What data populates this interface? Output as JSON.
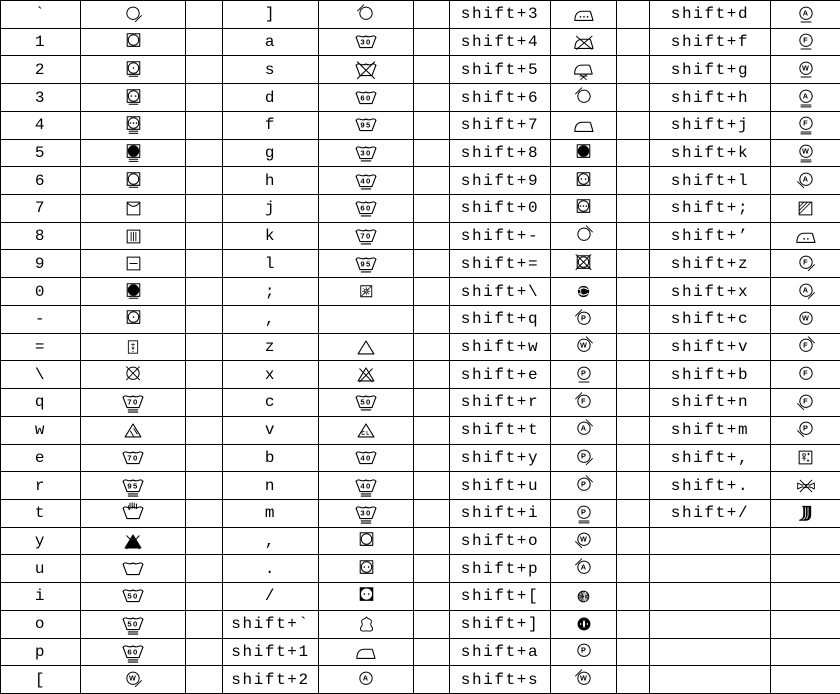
{
  "page": {
    "background_color": "#ffffff",
    "grid_color": "#000000",
    "text_color": "#000000",
    "row_count": 25,
    "description": "Key-to-laundry-care-symbol mapping table"
  },
  "table": {
    "pairs": [
      {
        "cells": [
          {
            "key": "`",
            "sym": {
              "type": "circle-slash",
              "slash": "lr"
            }
          },
          {
            "key": "1",
            "sym": {
              "type": "tumble"
            }
          },
          {
            "key": "2",
            "sym": {
              "type": "tumble",
              "dots": 1,
              "lines": 1
            }
          },
          {
            "key": "3",
            "sym": {
              "type": "tumble",
              "dots": 2,
              "lines": 1
            }
          },
          {
            "key": "4",
            "sym": {
              "type": "tumble",
              "dots": 3,
              "lines": 2
            }
          },
          {
            "key": "5",
            "sym": {
              "type": "tumble",
              "filled": true,
              "lines": 2
            }
          },
          {
            "key": "6",
            "sym": {
              "type": "tumble",
              "lines": 1
            }
          },
          {
            "key": "7",
            "sym": {
              "type": "hang-dry"
            }
          },
          {
            "key": "8",
            "sym": {
              "type": "drip-dry"
            }
          },
          {
            "key": "9",
            "sym": {
              "type": "dry-flat"
            }
          },
          {
            "key": "0",
            "sym": {
              "type": "tumble",
              "filled": true,
              "lines": 1
            }
          },
          {
            "key": "-",
            "sym": {
              "type": "tumble",
              "dots": 1
            }
          },
          {
            "key": "=",
            "sym": {
              "type": "dry-shade-mini"
            }
          },
          {
            "key": "\\",
            "sym": {
              "type": "circle-x"
            }
          },
          {
            "key": "q",
            "sym": {
              "type": "wash",
              "temp": "70",
              "lines": 2
            }
          },
          {
            "key": "w",
            "sym": {
              "type": "bleach-hatch"
            }
          },
          {
            "key": "e",
            "sym": {
              "type": "wash",
              "temp": "70"
            }
          },
          {
            "key": "r",
            "sym": {
              "type": "wash",
              "temp": "95",
              "lines": 2
            }
          },
          {
            "key": "t",
            "sym": {
              "type": "hand-wash"
            }
          },
          {
            "key": "y",
            "sym": {
              "type": "bleach-x-filled"
            }
          },
          {
            "key": "u",
            "sym": {
              "type": "wash"
            }
          },
          {
            "key": "i",
            "sym": {
              "type": "wash",
              "temp": "50"
            }
          },
          {
            "key": "o",
            "sym": {
              "type": "wash",
              "temp": "50",
              "lines": 2
            }
          },
          {
            "key": "p",
            "sym": {
              "type": "wash",
              "temp": "60",
              "lines": 2
            }
          },
          {
            "key": "[",
            "sym": {
              "type": "circle-letter",
              "letter": "W",
              "slash": "lr"
            }
          }
        ]
      },
      {
        "cells": [
          {
            "key": "]",
            "sym": {
              "type": "circle-slash",
              "slash": "ul"
            }
          },
          {
            "key": "a",
            "sym": {
              "type": "wash",
              "temp": "30"
            }
          },
          {
            "key": "s",
            "sym": {
              "type": "wash-x"
            }
          },
          {
            "key": "d",
            "sym": {
              "type": "wash",
              "temp": "60"
            }
          },
          {
            "key": "f",
            "sym": {
              "type": "wash",
              "temp": "95"
            }
          },
          {
            "key": "g",
            "sym": {
              "type": "wash",
              "temp": "30",
              "lines": 1
            }
          },
          {
            "key": "h",
            "sym": {
              "type": "wash",
              "temp": "40",
              "lines": 1
            }
          },
          {
            "key": "j",
            "sym": {
              "type": "wash",
              "temp": "60",
              "lines": 1
            }
          },
          {
            "key": "k",
            "sym": {
              "type": "wash",
              "temp": "70",
              "lines": 1
            }
          },
          {
            "key": "l",
            "sym": {
              "type": "wash",
              "temp": "95",
              "lines": 1
            }
          },
          {
            "key": ";",
            "sym": {
              "type": "dry-shade-sun"
            }
          },
          {
            "key": ",",
            "sym": null
          },
          {
            "key": "z",
            "sym": {
              "type": "bleach"
            }
          },
          {
            "key": "x",
            "sym": {
              "type": "bleach-x"
            }
          },
          {
            "key": "c",
            "sym": {
              "type": "wash",
              "temp": "50",
              "lines": 1
            }
          },
          {
            "key": "v",
            "sym": {
              "type": "bleach-cl"
            }
          },
          {
            "key": "b",
            "sym": {
              "type": "wash",
              "temp": "40"
            }
          },
          {
            "key": "n",
            "sym": {
              "type": "wash",
              "temp": "40",
              "lines": 2
            }
          },
          {
            "key": "m",
            "sym": {
              "type": "wash",
              "temp": "30",
              "lines": 2
            }
          },
          {
            "key": ",",
            "sym": {
              "type": "tumble"
            }
          },
          {
            "key": ".",
            "sym": {
              "type": "tumble",
              "dots": 2
            }
          },
          {
            "key": "/",
            "sym": {
              "type": "tumble",
              "dots": 2,
              "corners": true
            }
          },
          {
            "key": "shift+`",
            "sym": {
              "type": "leather"
            }
          },
          {
            "key": "shift+1",
            "sym": {
              "type": "iron"
            }
          },
          {
            "key": "shift+2",
            "sym": {
              "type": "circle-letter",
              "letter": "A"
            }
          }
        ]
      },
      {
        "cells": [
          {
            "key": "shift+3",
            "sym": {
              "type": "iron",
              "dots": 3
            }
          },
          {
            "key": "shift+4",
            "sym": {
              "type": "iron-x"
            }
          },
          {
            "key": "shift+5",
            "sym": {
              "type": "iron-no-steam"
            }
          },
          {
            "key": "shift+6",
            "sym": {
              "type": "circle-slash",
              "slash": "ul"
            }
          },
          {
            "key": "shift+7",
            "sym": {
              "type": "iron"
            }
          },
          {
            "key": "shift+8",
            "sym": {
              "type": "tumble",
              "filled": true
            }
          },
          {
            "key": "shift+9",
            "sym": {
              "type": "tumble",
              "dots": 2
            }
          },
          {
            "key": "shift+0",
            "sym": {
              "type": "tumble",
              "dots": 3
            }
          },
          {
            "key": "shift+-",
            "sym": {
              "type": "circle-slash",
              "slash": "ur"
            }
          },
          {
            "key": "shift+=",
            "sym": {
              "type": "tumble-x"
            }
          },
          {
            "key": "shift+\\",
            "sym": {
              "type": "twist-filled"
            }
          },
          {
            "key": "shift+q",
            "sym": {
              "type": "circle-letter",
              "letter": "P",
              "slash": "ul"
            }
          },
          {
            "key": "shift+w",
            "sym": {
              "type": "circle-letter",
              "letter": "W",
              "slash": "ur"
            }
          },
          {
            "key": "shift+e",
            "sym": {
              "type": "circle-letter",
              "letter": "P",
              "lines": 1
            }
          },
          {
            "key": "shift+r",
            "sym": {
              "type": "circle-letter",
              "letter": "F",
              "slash": "ul"
            }
          },
          {
            "key": "shift+t",
            "sym": {
              "type": "circle-letter",
              "letter": "A",
              "slash": "ur"
            }
          },
          {
            "key": "shift+y",
            "sym": {
              "type": "circle-letter",
              "letter": "P",
              "slash": "lr"
            }
          },
          {
            "key": "shift+u",
            "sym": {
              "type": "circle-letter",
              "letter": "P",
              "slash": "ur"
            }
          },
          {
            "key": "shift+i",
            "sym": {
              "type": "circle-letter",
              "letter": "P",
              "lines": 2
            }
          },
          {
            "key": "shift+o",
            "sym": {
              "type": "circle-letter",
              "letter": "W",
              "slash": "ll"
            }
          },
          {
            "key": "shift+p",
            "sym": {
              "type": "circle-letter",
              "letter": "A",
              "slash": "ul"
            }
          },
          {
            "key": "shift+[",
            "sym": {
              "type": "yarn-shaded"
            }
          },
          {
            "key": "shift+]",
            "sym": {
              "type": "wring-filled"
            }
          },
          {
            "key": "shift+a",
            "sym": {
              "type": "circle-letter",
              "letter": "P"
            }
          },
          {
            "key": "shift+s",
            "sym": {
              "type": "circle-letter",
              "letter": "W",
              "slash": "ul"
            }
          }
        ]
      },
      {
        "cells": [
          {
            "key": "shift+d",
            "sym": {
              "type": "circle-letter",
              "letter": "A",
              "lines": 1
            }
          },
          {
            "key": "shift+f",
            "sym": {
              "type": "circle-letter",
              "letter": "F",
              "lines": 1
            }
          },
          {
            "key": "shift+g",
            "sym": {
              "type": "circle-letter",
              "letter": "W",
              "lines": 1
            }
          },
          {
            "key": "shift+h",
            "sym": {
              "type": "circle-letter",
              "letter": "A",
              "lines": 2
            }
          },
          {
            "key": "shift+j",
            "sym": {
              "type": "circle-letter",
              "letter": "F",
              "lines": 2
            }
          },
          {
            "key": "shift+k",
            "sym": {
              "type": "circle-letter",
              "letter": "W",
              "lines": 2
            }
          },
          {
            "key": "shift+l",
            "sym": {
              "type": "circle-letter",
              "letter": "A",
              "slash": "ll"
            }
          },
          {
            "key": "shift+;",
            "sym": {
              "type": "square-corner-hatch"
            }
          },
          {
            "key": "shift+’",
            "sym": {
              "type": "iron",
              "dots": 2
            }
          },
          {
            "key": "shift+z",
            "sym": {
              "type": "circle-letter",
              "letter": "F",
              "slash": "lr"
            }
          },
          {
            "key": "shift+x",
            "sym": {
              "type": "circle-letter",
              "letter": "A",
              "slash": "lr"
            }
          },
          {
            "key": "shift+c",
            "sym": {
              "type": "circle-letter",
              "letter": "W"
            }
          },
          {
            "key": "shift+v",
            "sym": {
              "type": "circle-letter",
              "letter": "F",
              "slash": "ur"
            }
          },
          {
            "key": "shift+b",
            "sym": {
              "type": "circle-letter",
              "letter": "F"
            }
          },
          {
            "key": "shift+n",
            "sym": {
              "type": "circle-letter",
              "letter": "F",
              "slash": "ll"
            }
          },
          {
            "key": "shift+m",
            "sym": {
              "type": "circle-letter",
              "letter": "P",
              "slash": "ll"
            }
          },
          {
            "key": "shift+,",
            "sym": {
              "type": "square-figure"
            }
          },
          {
            "key": "shift+.",
            "sym": {
              "type": "no-wring"
            }
          },
          {
            "key": "shift+/",
            "sym": {
              "type": "fold-filled"
            }
          },
          {
            "key": "",
            "sym": null
          },
          {
            "key": "",
            "sym": null
          },
          {
            "key": "",
            "sym": null
          },
          {
            "key": "",
            "sym": null
          },
          {
            "key": "",
            "sym": null
          },
          {
            "key": "",
            "sym": null
          }
        ]
      }
    ]
  }
}
